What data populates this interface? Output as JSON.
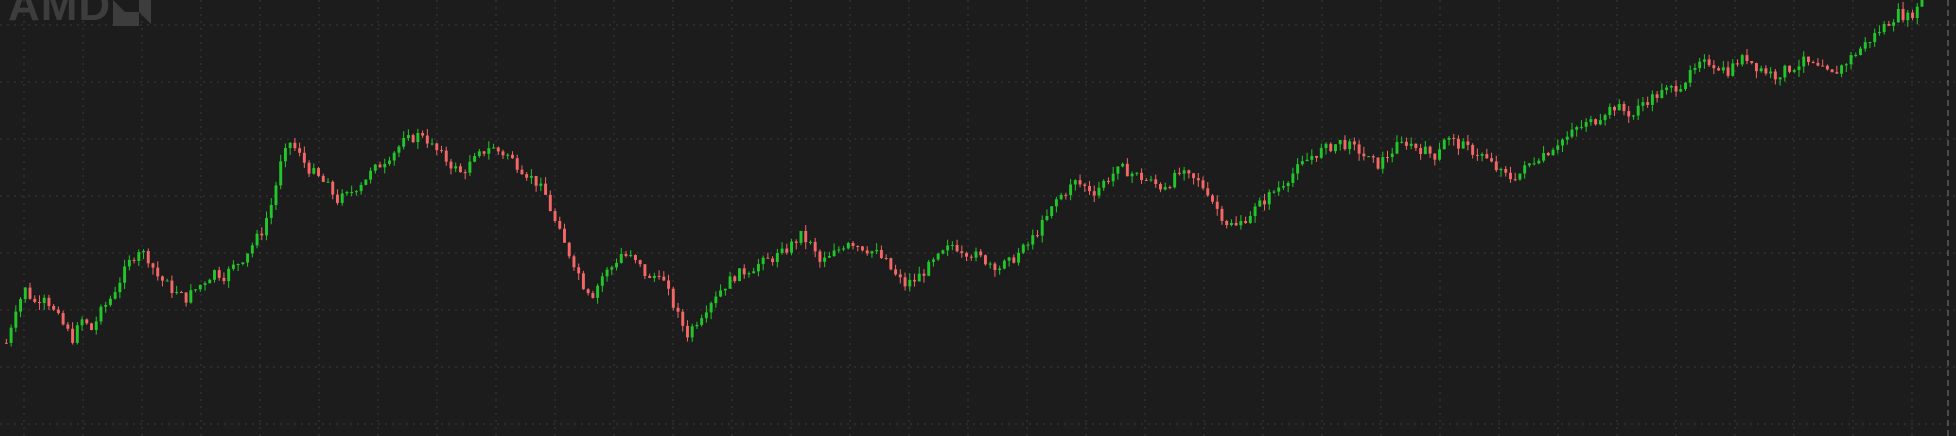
{
  "logo": {
    "text": "AMD",
    "icon": "amd-arrow-logo"
  },
  "colors": {
    "background": "#1c1c1c",
    "grid": "#3a3a3a",
    "up": "#22c62a",
    "down": "#f36767",
    "watermark": "#3d3d3d",
    "price_marker": "#7a7a7a"
  },
  "chart_data": {
    "type": "candlestick",
    "grid": true,
    "ylim": [
      0,
      100
    ],
    "close_prices": [
      20,
      28,
      32,
      29,
      31,
      27,
      24,
      21,
      25,
      23,
      27,
      30,
      34,
      38,
      41,
      39,
      35,
      33,
      31,
      30,
      32,
      34,
      36,
      35,
      37,
      39,
      42,
      45,
      51,
      60,
      65,
      62,
      59,
      57,
      55,
      52,
      53,
      55,
      57,
      59,
      61,
      63,
      65,
      66,
      67,
      64,
      62,
      60,
      58,
      60,
      62,
      64,
      63,
      62,
      60,
      58,
      56,
      53,
      47,
      42,
      38,
      33,
      31,
      35,
      37,
      40,
      39,
      37,
      34,
      36,
      31,
      26,
      22,
      25,
      28,
      31,
      33,
      35,
      36,
      37,
      38,
      39,
      40,
      42,
      44,
      42,
      38,
      39,
      41,
      43,
      42,
      41,
      40,
      38,
      35,
      33,
      34,
      36,
      38,
      40,
      42,
      41,
      40,
      39,
      38,
      37,
      38,
      40,
      42,
      45,
      48,
      52,
      54,
      56,
      55,
      54,
      56,
      58,
      59,
      58,
      57,
      56,
      55,
      56,
      58,
      57,
      56,
      54,
      50,
      47,
      46,
      48,
      50,
      52,
      54,
      56,
      58,
      60,
      62,
      63,
      64,
      65,
      64,
      63,
      61,
      60,
      62,
      64,
      65,
      64,
      63,
      62,
      66,
      65,
      64,
      63,
      62,
      60,
      58,
      57,
      58,
      60,
      62,
      63,
      65,
      66,
      68,
      69,
      70,
      72,
      73,
      72,
      71,
      74,
      75,
      76,
      77,
      78,
      80,
      82,
      83,
      82,
      81,
      83,
      84,
      82,
      81,
      80,
      81,
      82,
      83,
      82,
      81,
      80,
      82,
      84,
      86,
      88,
      90,
      92,
      94,
      93,
      95,
      105,
      110
    ]
  }
}
